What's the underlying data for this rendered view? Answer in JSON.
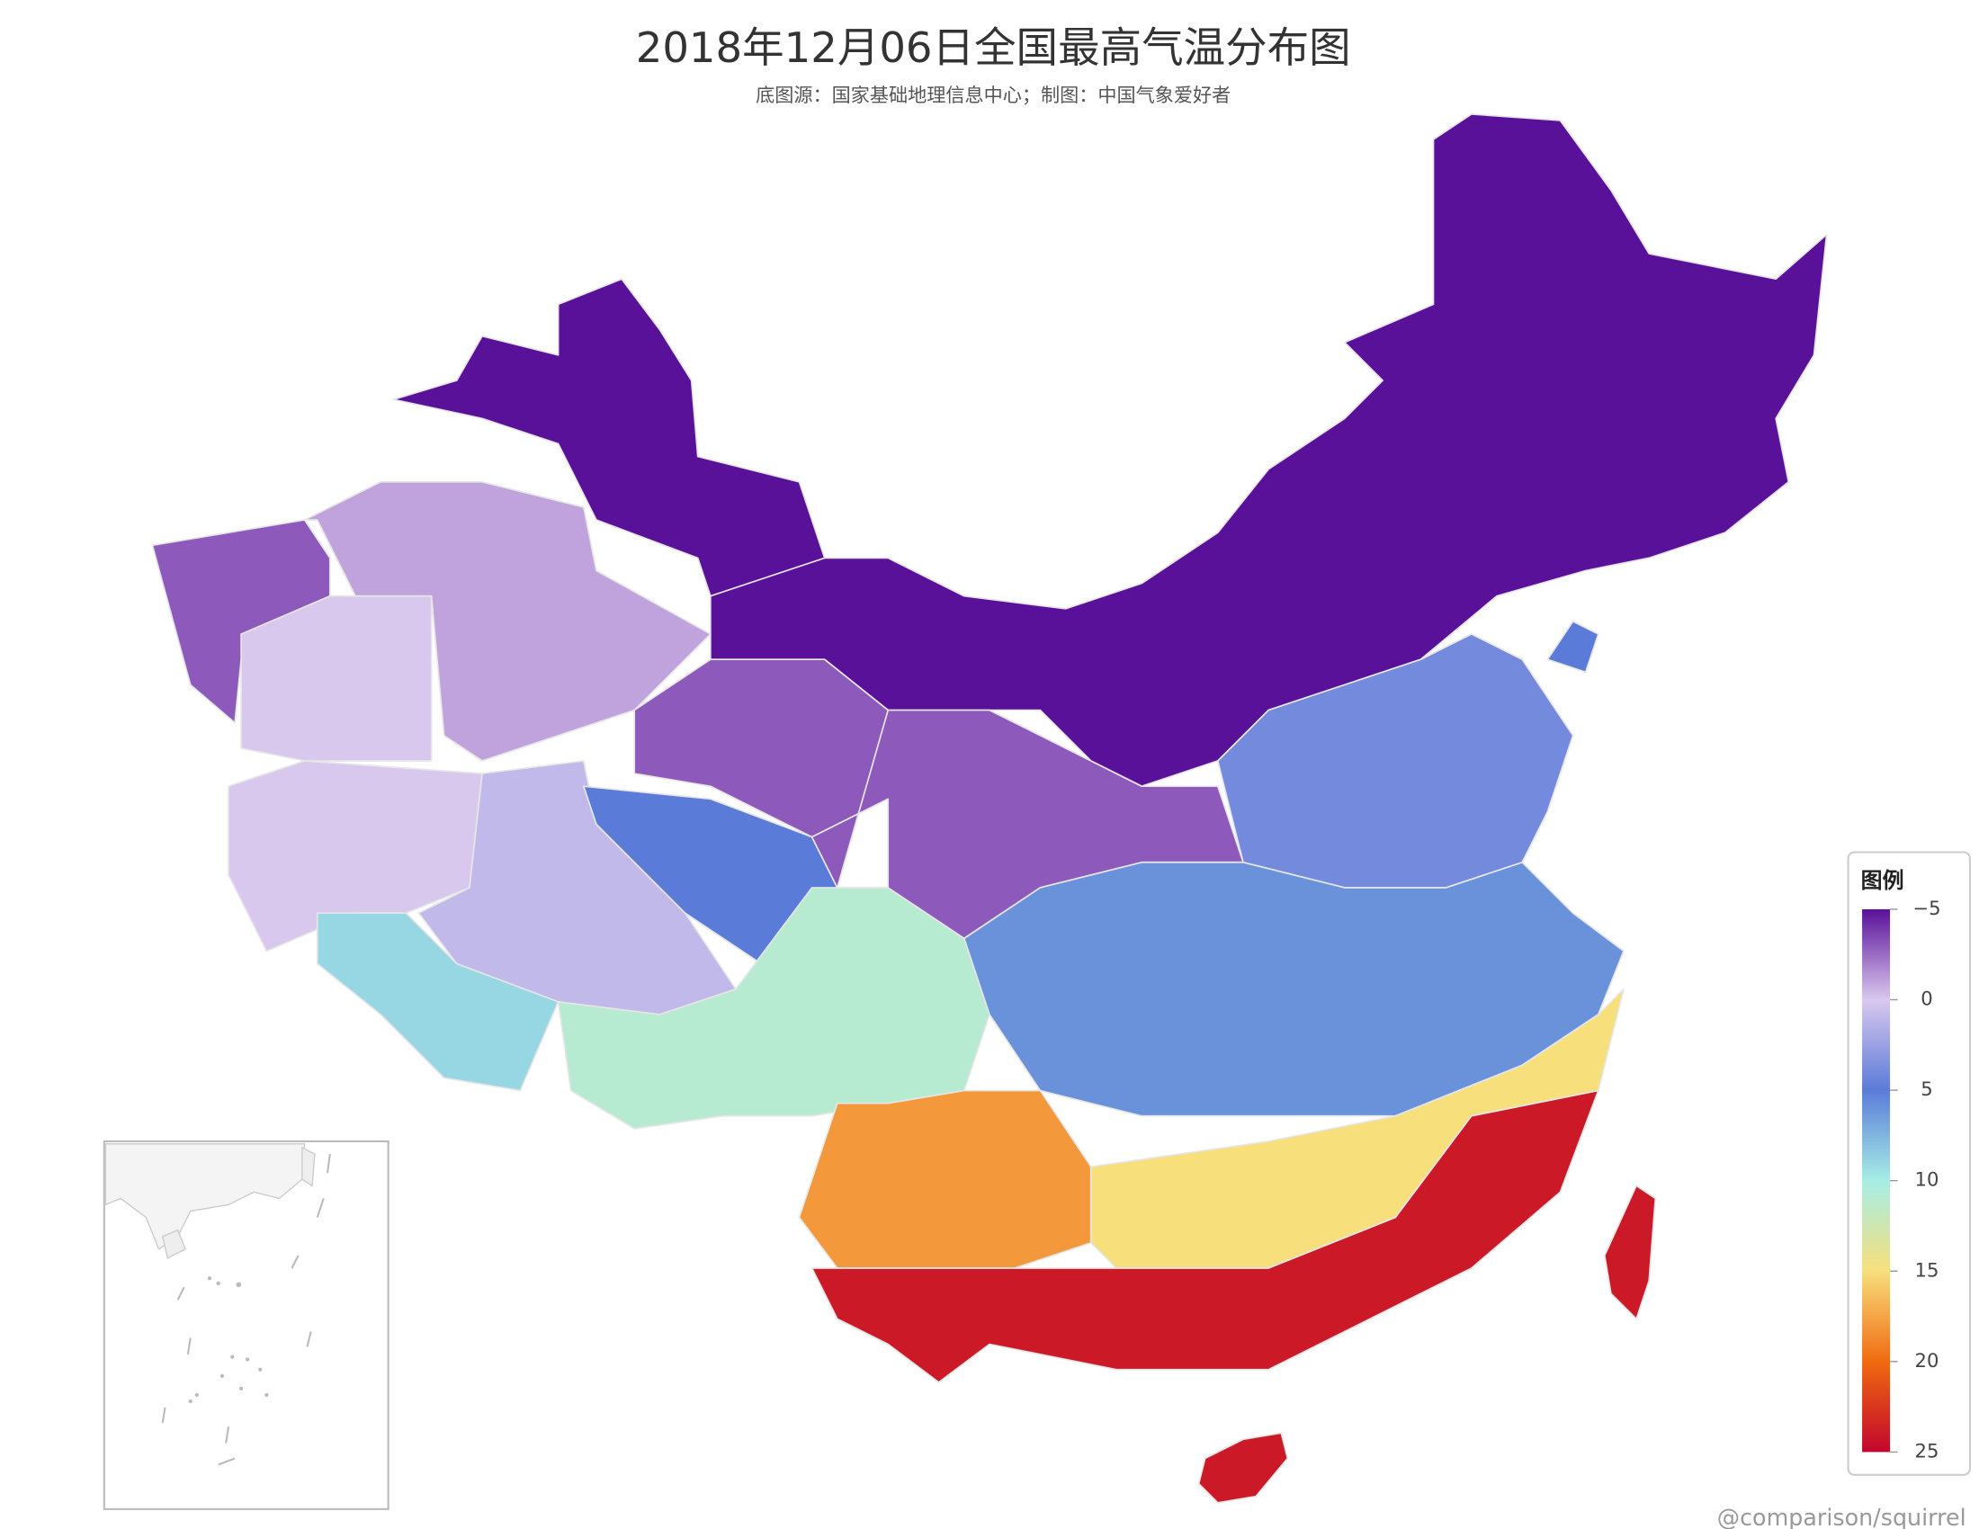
{
  "title": "2018年12月06日全国最高气温分布图",
  "subtitle": "底图源：国家基础地理信息中心；制图：中国气象爱好者",
  "watermark": "@comparison/squirrel",
  "legend": {
    "title": "图例",
    "clim": [
      -5,
      25
    ],
    "ticks": [
      {
        "value": -5,
        "label": "−5"
      },
      0,
      5,
      10,
      15,
      20,
      25
    ],
    "colors": [
      "#5a1199",
      "#d9c8ee",
      "#5b7bd8",
      "#a6ede6",
      "#f7df7c",
      "#f06a10",
      "#c2052d"
    ]
  },
  "values": [
    -5,
    -5,
    -3,
    -1,
    0,
    -3,
    0,
    1,
    5,
    9,
    11,
    -3,
    4,
    6,
    18,
    15,
    24,
    24,
    24,
    5
  ]
}
